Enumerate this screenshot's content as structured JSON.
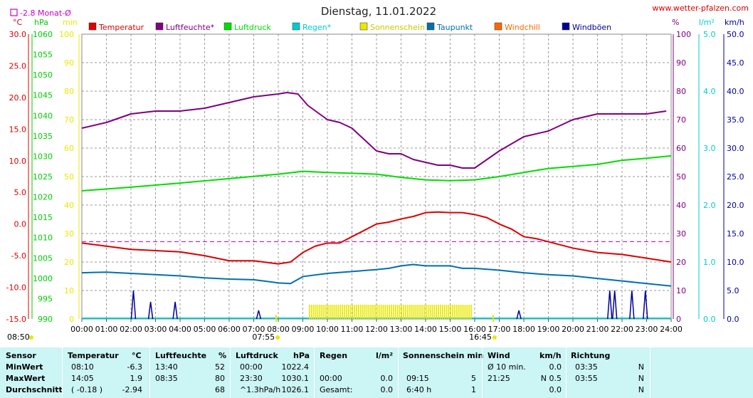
{
  "header": {
    "title": "Dienstag, 11.01.2022",
    "site": "www.wetter-pfalzen.com",
    "monthly_avg_label": "-2.8 Monat-Ø"
  },
  "units": {
    "temp": "°C",
    "pressure": "hPa",
    "minutes": "min",
    "percent": "%",
    "rain": "l/m²",
    "wind": "km/h"
  },
  "legend": [
    {
      "name": "Temperatur",
      "color": "#dd0000"
    },
    {
      "name": "Luftfeuchte*",
      "color": "#800080"
    },
    {
      "name": "Luftdruck",
      "color": "#00dd00"
    },
    {
      "name": "Regen*",
      "color": "#00cccc"
    },
    {
      "name": "Sonnenschein",
      "color": "#e8e800"
    },
    {
      "name": "Taupunkt",
      "color": "#0070b0"
    },
    {
      "name": "Windchill",
      "color": "#ff6600"
    },
    {
      "name": "Windböen",
      "color": "#000099"
    }
  ],
  "markers": {
    "sunrise": "07:55",
    "sunset": "16:45",
    "low_time": "08:50"
  },
  "chart_data": {
    "type": "line",
    "x_unit": "hours",
    "x_ticks": [
      "00:00",
      "01:00",
      "02:00",
      "03:00",
      "04:00",
      "05:00",
      "06:00",
      "07:00",
      "08:00",
      "09:00",
      "10:00",
      "11:00",
      "12:00",
      "13:00",
      "14:00",
      "15:00",
      "16:00",
      "17:00",
      "18:00",
      "19:00",
      "20:00",
      "21:00",
      "22:00",
      "23:00",
      "24:00"
    ],
    "axes": {
      "temp": {
        "label": "°C",
        "min": -15,
        "max": 30,
        "ticks": [
          "30.0",
          "25.0",
          "20.0",
          "15.0",
          "10.0",
          "5.0",
          "0.0",
          "-5.0",
          "-10.0",
          "-15.0"
        ]
      },
      "pressure": {
        "label": "hPa",
        "min": 990,
        "max": 1060,
        "ticks": [
          "1060",
          "1055",
          "1050",
          "1045",
          "1040",
          "1035",
          "1030",
          "1025",
          "1020",
          "1015",
          "1010",
          "1005",
          "1000",
          "995",
          "990"
        ]
      },
      "minutes": {
        "label": "min",
        "min": 0,
        "max": 100,
        "ticks": [
          "100",
          "90",
          "80",
          "70",
          "60",
          "50",
          "40",
          "30",
          "20",
          "10",
          "0"
        ]
      },
      "humidity": {
        "label": "%",
        "min": 0,
        "max": 100,
        "ticks": [
          "100",
          "90",
          "80",
          "70",
          "60",
          "50",
          "40",
          "30",
          "20",
          "10",
          "0"
        ]
      },
      "rain": {
        "label": "l/m²",
        "min": 0,
        "max": 5,
        "ticks": [
          "5.0",
          "4.0",
          "3.0",
          "2.0",
          "1.0",
          "0.0"
        ]
      },
      "wind": {
        "label": "km/h",
        "min": 0,
        "max": 50,
        "ticks": [
          "50.0",
          "45.0",
          "40.0",
          "35.0",
          "30.0",
          "25.0",
          "20.0",
          "15.0",
          "10.0",
          "5.0",
          "0.0"
        ]
      }
    },
    "monthly_avg_temp": -2.8,
    "series": [
      {
        "name": "Temperatur",
        "axis": "temp",
        "color": "#dd0000",
        "x": [
          0,
          1,
          2,
          3,
          4,
          5,
          6,
          7,
          8,
          8.5,
          9,
          9.5,
          10,
          10.5,
          11,
          11.5,
          12,
          12.5,
          13,
          13.5,
          14,
          14.5,
          15,
          15.5,
          16,
          16.5,
          17,
          17.5,
          18,
          18.5,
          19,
          20,
          21,
          22,
          23,
          24
        ],
        "y": [
          -3.0,
          -3.5,
          -4.0,
          -4.2,
          -4.4,
          -5.0,
          -5.8,
          -5.8,
          -6.3,
          -6.0,
          -4.5,
          -3.5,
          -3.0,
          -3.0,
          -2.0,
          -1.0,
          0.0,
          0.3,
          0.8,
          1.2,
          1.8,
          1.9,
          1.8,
          1.8,
          1.5,
          1.0,
          0.0,
          -0.8,
          -2.0,
          -2.3,
          -2.8,
          -3.8,
          -4.5,
          -4.8,
          -5.4,
          -6.0
        ]
      },
      {
        "name": "Luftfeuchte*",
        "axis": "humidity",
        "color": "#800080",
        "x": [
          0,
          1,
          2,
          3,
          4,
          5,
          6,
          7,
          8,
          8.35,
          8.8,
          9.2,
          10,
          10.5,
          11,
          11.5,
          12,
          12.5,
          13,
          13.5,
          14,
          14.5,
          15,
          15.5,
          16,
          16.5,
          17,
          18,
          19,
          20,
          21,
          22,
          23,
          23.8
        ],
        "y": [
          67,
          69,
          72,
          73,
          73,
          74,
          76,
          78,
          79,
          79.5,
          79,
          75,
          70,
          69,
          67,
          63,
          59,
          58,
          58,
          56,
          55,
          54,
          54,
          53,
          53,
          56,
          59,
          64,
          66,
          70,
          72,
          72,
          72,
          73
        ]
      },
      {
        "name": "Luftdruck",
        "axis": "pressure",
        "color": "#00dd00",
        "x": [
          0,
          2,
          4,
          6,
          8,
          9,
          10,
          11,
          12,
          13,
          14,
          15,
          16,
          17,
          18,
          19,
          20,
          21,
          22,
          23,
          24
        ],
        "y": [
          1021.5,
          1022.4,
          1023.4,
          1024.5,
          1025.6,
          1026.3,
          1026.0,
          1025.8,
          1025.6,
          1024.8,
          1024.2,
          1024.0,
          1024.2,
          1025.0,
          1026.0,
          1027.0,
          1027.5,
          1028.0,
          1029.0,
          1029.5,
          1030.1
        ]
      },
      {
        "name": "Taupunkt",
        "axis": "temp",
        "color": "#0070b0",
        "x": [
          0,
          1,
          2,
          3,
          4,
          5,
          6,
          7,
          8,
          8.5,
          9,
          10,
          11,
          12,
          12.5,
          13,
          13.5,
          14,
          14.5,
          15,
          15.5,
          16,
          17,
          18,
          19,
          20,
          21,
          22,
          23,
          24
        ],
        "y": [
          -7.7,
          -7.6,
          -7.8,
          -8.0,
          -8.2,
          -8.5,
          -8.7,
          -8.8,
          -9.3,
          -9.4,
          -8.3,
          -7.8,
          -7.5,
          -7.2,
          -7.0,
          -6.6,
          -6.4,
          -6.6,
          -6.6,
          -6.6,
          -7.0,
          -7.0,
          -7.3,
          -7.7,
          -8.0,
          -8.2,
          -8.6,
          -9.0,
          -9.4,
          -9.8
        ]
      },
      {
        "name": "Windböen",
        "axis": "wind",
        "color": "#000099",
        "type": "spikes",
        "x": [
          2.1,
          2.8,
          3.8,
          7.2,
          17.8,
          21.5,
          21.7,
          22.4,
          22.95
        ],
        "y": [
          5.0,
          3.0,
          3.0,
          1.5,
          1.5,
          5.0,
          5.0,
          5.0,
          5.0
        ]
      },
      {
        "name": "Sonnenschein",
        "axis": "minutes",
        "color": "#e8e800",
        "type": "bars",
        "x_start": 9.25,
        "x_end": 15.85,
        "y": 5
      }
    ]
  },
  "stats": {
    "columns": [
      {
        "key": "sensor",
        "header": "Sensor",
        "unit": ""
      },
      {
        "key": "temp",
        "header": "Temperatur",
        "unit": "°C"
      },
      {
        "key": "hum",
        "header": "Luftfeuchte",
        "unit": "%"
      },
      {
        "key": "press",
        "header": "Luftdruck",
        "unit": "hPa"
      },
      {
        "key": "rain",
        "header": "Regen",
        "unit": "l/m²"
      },
      {
        "key": "sun",
        "header": "Sonnenschein min",
        "unit": ""
      },
      {
        "key": "wind",
        "header": "Wind",
        "unit": "km/h"
      },
      {
        "key": "dir",
        "header": "Richtung",
        "unit": ""
      }
    ],
    "rows": [
      {
        "label": "MinWert",
        "temp_t": "08:10",
        "temp_v": "-6.3",
        "hum_t": "13:40",
        "hum_v": "52",
        "press_t": "00:00",
        "press_v": "1022.4",
        "rain_t": "",
        "rain_v": "",
        "sun_t": "",
        "sun_v": "",
        "wind_t": "Ø 10 min.",
        "wind_v": "0.0",
        "dir_t": "03:35",
        "dir_v": "N"
      },
      {
        "label": "MaxWert",
        "temp_t": "14:05",
        "temp_v": "1.9",
        "hum_t": "08:35",
        "hum_v": "80",
        "press_t": "23:30",
        "press_v": "1030.1",
        "rain_t": "00:00",
        "rain_v": "0.0",
        "sun_t": "09:15",
        "sun_v": "5",
        "wind_t": "21:25",
        "wind_v": "N 0.5",
        "dir_t": "03:55",
        "dir_v": "N"
      },
      {
        "label": "Durchschnitt",
        "temp_t": "( -0.18 )",
        "temp_v": "-2.94",
        "hum_t": "",
        "hum_v": "68",
        "press_t": "^1.3hPa/h",
        "press_v": "1026.1",
        "rain_t": "Gesamt:",
        "rain_v": "0.0",
        "sun_t": "6:40 h",
        "sun_v": "1",
        "wind_t": "",
        "wind_v": "0.0",
        "dir_t": "",
        "dir_v": "N"
      }
    ]
  }
}
